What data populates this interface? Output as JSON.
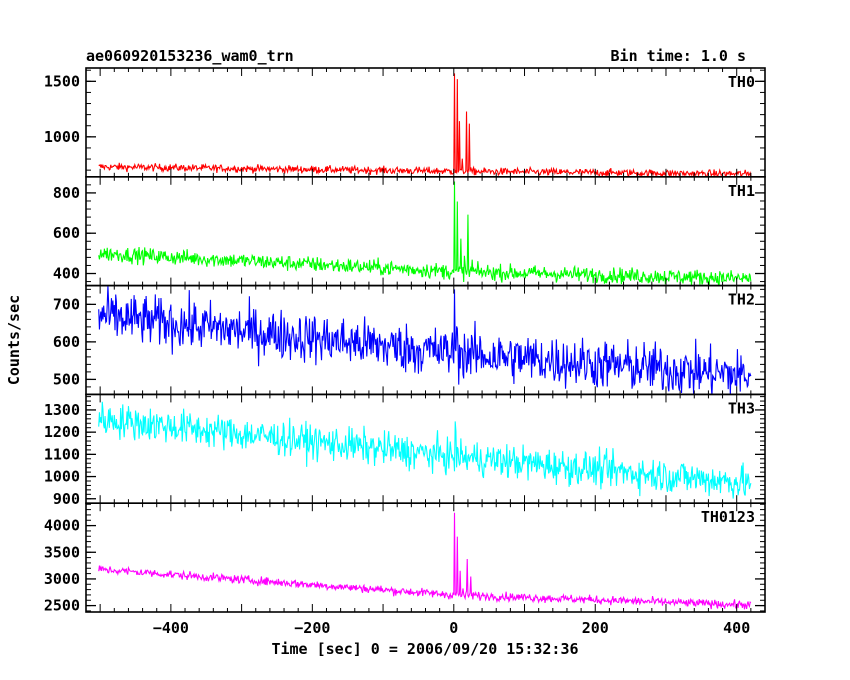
{
  "header": {
    "title": "ae060920153236_wam0_trn",
    "bin_time": "Bin time: 1.0 s"
  },
  "chart_data": {
    "type": "line",
    "title": "ae060920153236_wam0_trn",
    "xlabel": "Time [sec] 0 = 2006/09/20 15:32:36",
    "ylabel": "Counts/sec",
    "xlim": [
      -520,
      440
    ],
    "x_ticks": [
      -400,
      -200,
      0,
      200,
      400
    ],
    "x_tick_labels": [
      "−400",
      "−200",
      "0",
      "200",
      "400"
    ],
    "panels": [
      {
        "name": "TH0",
        "color": "#ff0000",
        "ylim": [
          640,
          1620
        ],
        "y_ticks": [
          1000,
          1500
        ],
        "y_tick_labels": [
          "1000",
          "1500"
        ],
        "baseline": [
          [
            -502,
            730
          ],
          [
            0,
            690
          ],
          [
            420,
            665
          ]
        ],
        "noise": 30,
        "peaks": [
          [
            1,
            1580
          ],
          [
            5,
            1500
          ],
          [
            8,
            1150
          ],
          [
            12,
            780
          ],
          [
            18,
            1250
          ],
          [
            22,
            1120
          ],
          [
            30,
            700
          ]
        ]
      },
      {
        "name": "TH1",
        "color": "#00ff00",
        "ylim": [
          340,
          880
        ],
        "y_ticks": [
          400,
          600,
          800
        ],
        "y_tick_labels": [
          "400",
          "600",
          "800"
        ],
        "baseline": [
          [
            -502,
            500
          ],
          [
            0,
            410
          ],
          [
            420,
            375
          ]
        ],
        "noise": 35,
        "peaks": [
          [
            1,
            840
          ],
          [
            5,
            740
          ],
          [
            10,
            560
          ],
          [
            15,
            480
          ],
          [
            20,
            680
          ],
          [
            26,
            470
          ],
          [
            34,
            420
          ]
        ]
      },
      {
        "name": "TH2",
        "color": "#0000ff",
        "ylim": [
          460,
          750
        ],
        "y_ticks": [
          500,
          600,
          700
        ],
        "y_tick_labels": [
          "500",
          "600",
          "700"
        ],
        "baseline": [
          [
            -502,
            670
          ],
          [
            0,
            570
          ],
          [
            420,
            510
          ]
        ],
        "noise": 60,
        "peaks": [
          [
            1,
            740
          ],
          [
            4,
            660
          ],
          [
            8,
            600
          ]
        ]
      },
      {
        "name": "TH3",
        "color": "#00ffff",
        "ylim": [
          880,
          1370
        ],
        "y_ticks": [
          900,
          1000,
          1100,
          1200,
          1300
        ],
        "y_tick_labels": [
          "900",
          "1000",
          "1100",
          "1200",
          "1300"
        ],
        "baseline": [
          [
            -502,
            1260
          ],
          [
            0,
            1090
          ],
          [
            420,
            970
          ]
        ],
        "noise": 70,
        "peaks": [
          [
            2,
            1220
          ],
          [
            6,
            1160
          ]
        ]
      },
      {
        "name": "TH0123",
        "color": "#ff00ff",
        "ylim": [
          2380,
          4420
        ],
        "y_ticks": [
          2500,
          3000,
          3500,
          4000
        ],
        "y_tick_labels": [
          "2500",
          "3000",
          "3500",
          "4000"
        ],
        "baseline": [
          [
            -502,
            3180
          ],
          [
            0,
            2700
          ],
          [
            420,
            2510
          ]
        ],
        "noise": 70,
        "peaks": [
          [
            1,
            4250
          ],
          [
            5,
            3800
          ],
          [
            9,
            3150
          ],
          [
            13,
            2800
          ],
          [
            19,
            3350
          ],
          [
            24,
            3050
          ],
          [
            32,
            2700
          ]
        ]
      }
    ],
    "x_start": -502,
    "x_end": 420,
    "grid": false,
    "legend": "none"
  }
}
